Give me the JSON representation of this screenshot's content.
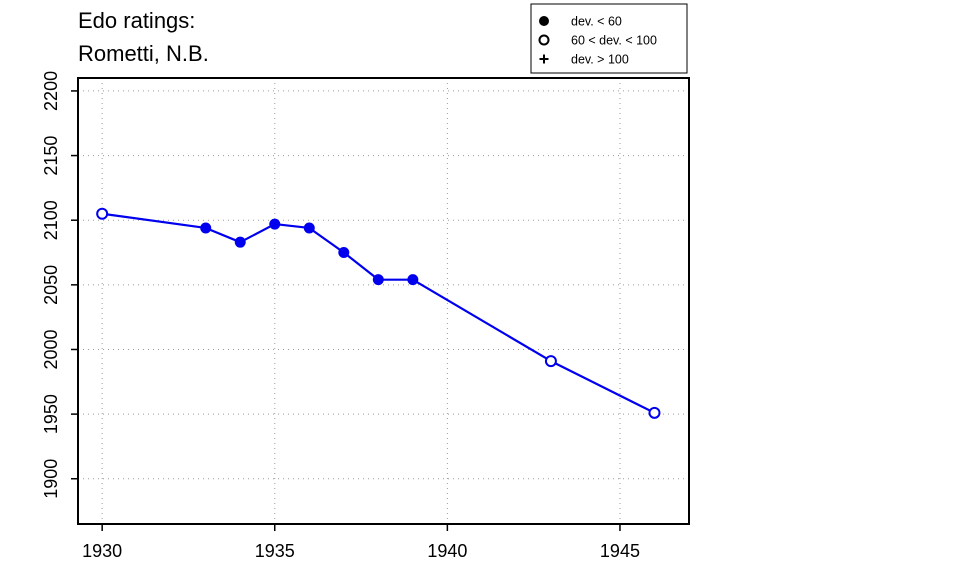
{
  "chart_data": {
    "type": "line",
    "title_lines": [
      "Edo ratings:",
      "Rometti, N.B."
    ],
    "xlabel": "",
    "ylabel": "",
    "xlim": [
      1929.3,
      1947.0
    ],
    "ylim": [
      1865,
      2210
    ],
    "x_ticks": [
      1930,
      1935,
      1940,
      1945
    ],
    "y_ticks": [
      1900,
      1950,
      2000,
      2050,
      2100,
      2150,
      2200
    ],
    "grid": true,
    "legend_position": "top-right",
    "legend": [
      {
        "label": "dev. < 60",
        "marker": "filled-circle"
      },
      {
        "label": "60 < dev. < 100",
        "marker": "open-circle"
      },
      {
        "label": "dev. > 100",
        "marker": "plus"
      }
    ],
    "series": [
      {
        "color": "#0000ee",
        "points": [
          {
            "x": 1930,
            "y": 2105,
            "marker": "open-circle"
          },
          {
            "x": 1933,
            "y": 2094,
            "marker": "filled-circle"
          },
          {
            "x": 1934,
            "y": 2083,
            "marker": "filled-circle"
          },
          {
            "x": 1935,
            "y": 2097,
            "marker": "filled-circle"
          },
          {
            "x": 1936,
            "y": 2094,
            "marker": "filled-circle"
          },
          {
            "x": 1937,
            "y": 2075,
            "marker": "filled-circle"
          },
          {
            "x": 1938,
            "y": 2054,
            "marker": "filled-circle"
          },
          {
            "x": 1939,
            "y": 2054,
            "marker": "filled-circle"
          },
          {
            "x": 1943,
            "y": 1991,
            "marker": "open-circle"
          },
          {
            "x": 1946,
            "y": 1951,
            "marker": "open-circle"
          }
        ]
      }
    ]
  }
}
